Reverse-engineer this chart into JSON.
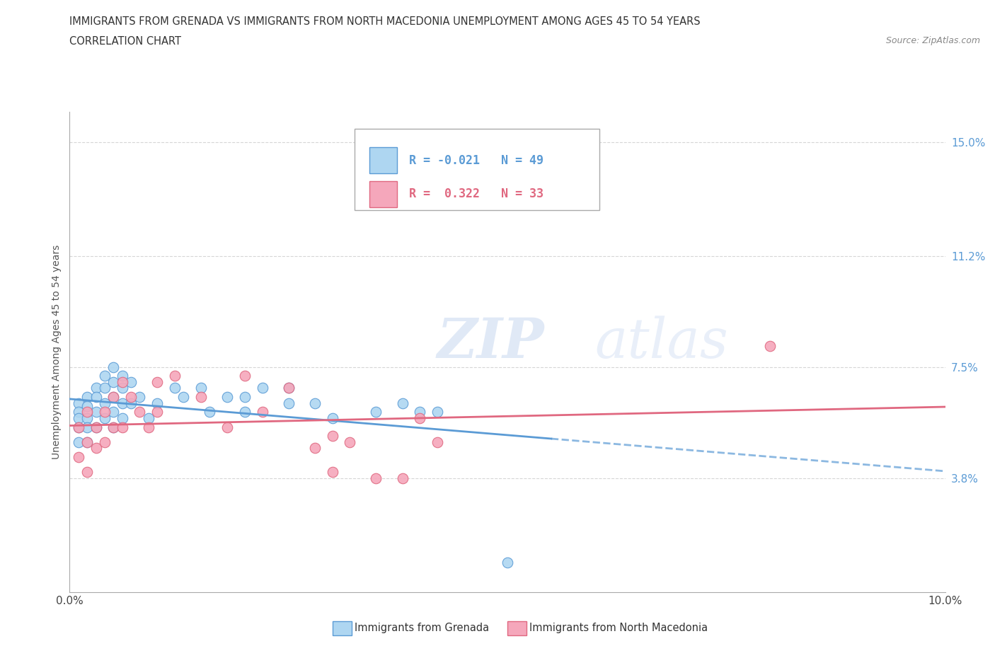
{
  "title_line1": "IMMIGRANTS FROM GRENADA VS IMMIGRANTS FROM NORTH MACEDONIA UNEMPLOYMENT AMONG AGES 45 TO 54 YEARS",
  "title_line2": "CORRELATION CHART",
  "source_text": "Source: ZipAtlas.com",
  "ylabel": "Unemployment Among Ages 45 to 54 years",
  "xmin": 0.0,
  "xmax": 0.1,
  "ymin": 0.0,
  "ymax": 0.16,
  "xtick_positions": [
    0.0,
    0.02,
    0.04,
    0.06,
    0.08,
    0.1
  ],
  "xticklabels": [
    "0.0%",
    "",
    "",
    "",
    "",
    "10.0%"
  ],
  "ytick_positions": [
    0.038,
    0.075,
    0.112,
    0.15
  ],
  "ytick_labels": [
    "3.8%",
    "7.5%",
    "11.2%",
    "15.0%"
  ],
  "grid_color": "#cccccc",
  "background_color": "#ffffff",
  "grenada_color": "#aed6f1",
  "grenada_edge_color": "#5b9bd5",
  "macedonia_color": "#f5a7bb",
  "macedonia_edge_color": "#e06880",
  "grenada_R": -0.021,
  "grenada_N": 49,
  "macedonia_R": 0.322,
  "macedonia_N": 33,
  "grenada_line_color": "#5b9bd5",
  "macedonia_line_color": "#e06880",
  "watermark_zip": "ZIP",
  "watermark_atlas": "atlas",
  "legend_label_grenada": "Immigrants from Grenada",
  "legend_label_macedonia": "Immigrants from North Macedonia",
  "grenada_x": [
    0.001,
    0.001,
    0.001,
    0.001,
    0.001,
    0.002,
    0.002,
    0.002,
    0.002,
    0.002,
    0.003,
    0.003,
    0.003,
    0.003,
    0.004,
    0.004,
    0.004,
    0.004,
    0.005,
    0.005,
    0.005,
    0.005,
    0.005,
    0.006,
    0.006,
    0.006,
    0.006,
    0.007,
    0.007,
    0.008,
    0.009,
    0.01,
    0.012,
    0.013,
    0.015,
    0.016,
    0.018,
    0.02,
    0.02,
    0.022,
    0.025,
    0.025,
    0.028,
    0.03,
    0.035,
    0.038,
    0.04,
    0.042,
    0.05
  ],
  "grenada_y": [
    0.063,
    0.06,
    0.058,
    0.055,
    0.05,
    0.065,
    0.062,
    0.058,
    0.055,
    0.05,
    0.068,
    0.065,
    0.06,
    0.055,
    0.072,
    0.068,
    0.063,
    0.058,
    0.075,
    0.07,
    0.065,
    0.06,
    0.055,
    0.072,
    0.068,
    0.063,
    0.058,
    0.07,
    0.063,
    0.065,
    0.058,
    0.063,
    0.068,
    0.065,
    0.068,
    0.06,
    0.065,
    0.065,
    0.06,
    0.068,
    0.068,
    0.063,
    0.063,
    0.058,
    0.06,
    0.063,
    0.06,
    0.06,
    0.01
  ],
  "macedonia_x": [
    0.001,
    0.001,
    0.002,
    0.002,
    0.002,
    0.003,
    0.003,
    0.004,
    0.004,
    0.005,
    0.005,
    0.006,
    0.006,
    0.007,
    0.008,
    0.009,
    0.01,
    0.01,
    0.012,
    0.015,
    0.018,
    0.02,
    0.022,
    0.025,
    0.028,
    0.03,
    0.03,
    0.032,
    0.035,
    0.038,
    0.04,
    0.042,
    0.08
  ],
  "macedonia_y": [
    0.055,
    0.045,
    0.06,
    0.05,
    0.04,
    0.055,
    0.048,
    0.06,
    0.05,
    0.065,
    0.055,
    0.07,
    0.055,
    0.065,
    0.06,
    0.055,
    0.07,
    0.06,
    0.072,
    0.065,
    0.055,
    0.072,
    0.06,
    0.068,
    0.048,
    0.052,
    0.04,
    0.05,
    0.038,
    0.038,
    0.058,
    0.05,
    0.082
  ]
}
